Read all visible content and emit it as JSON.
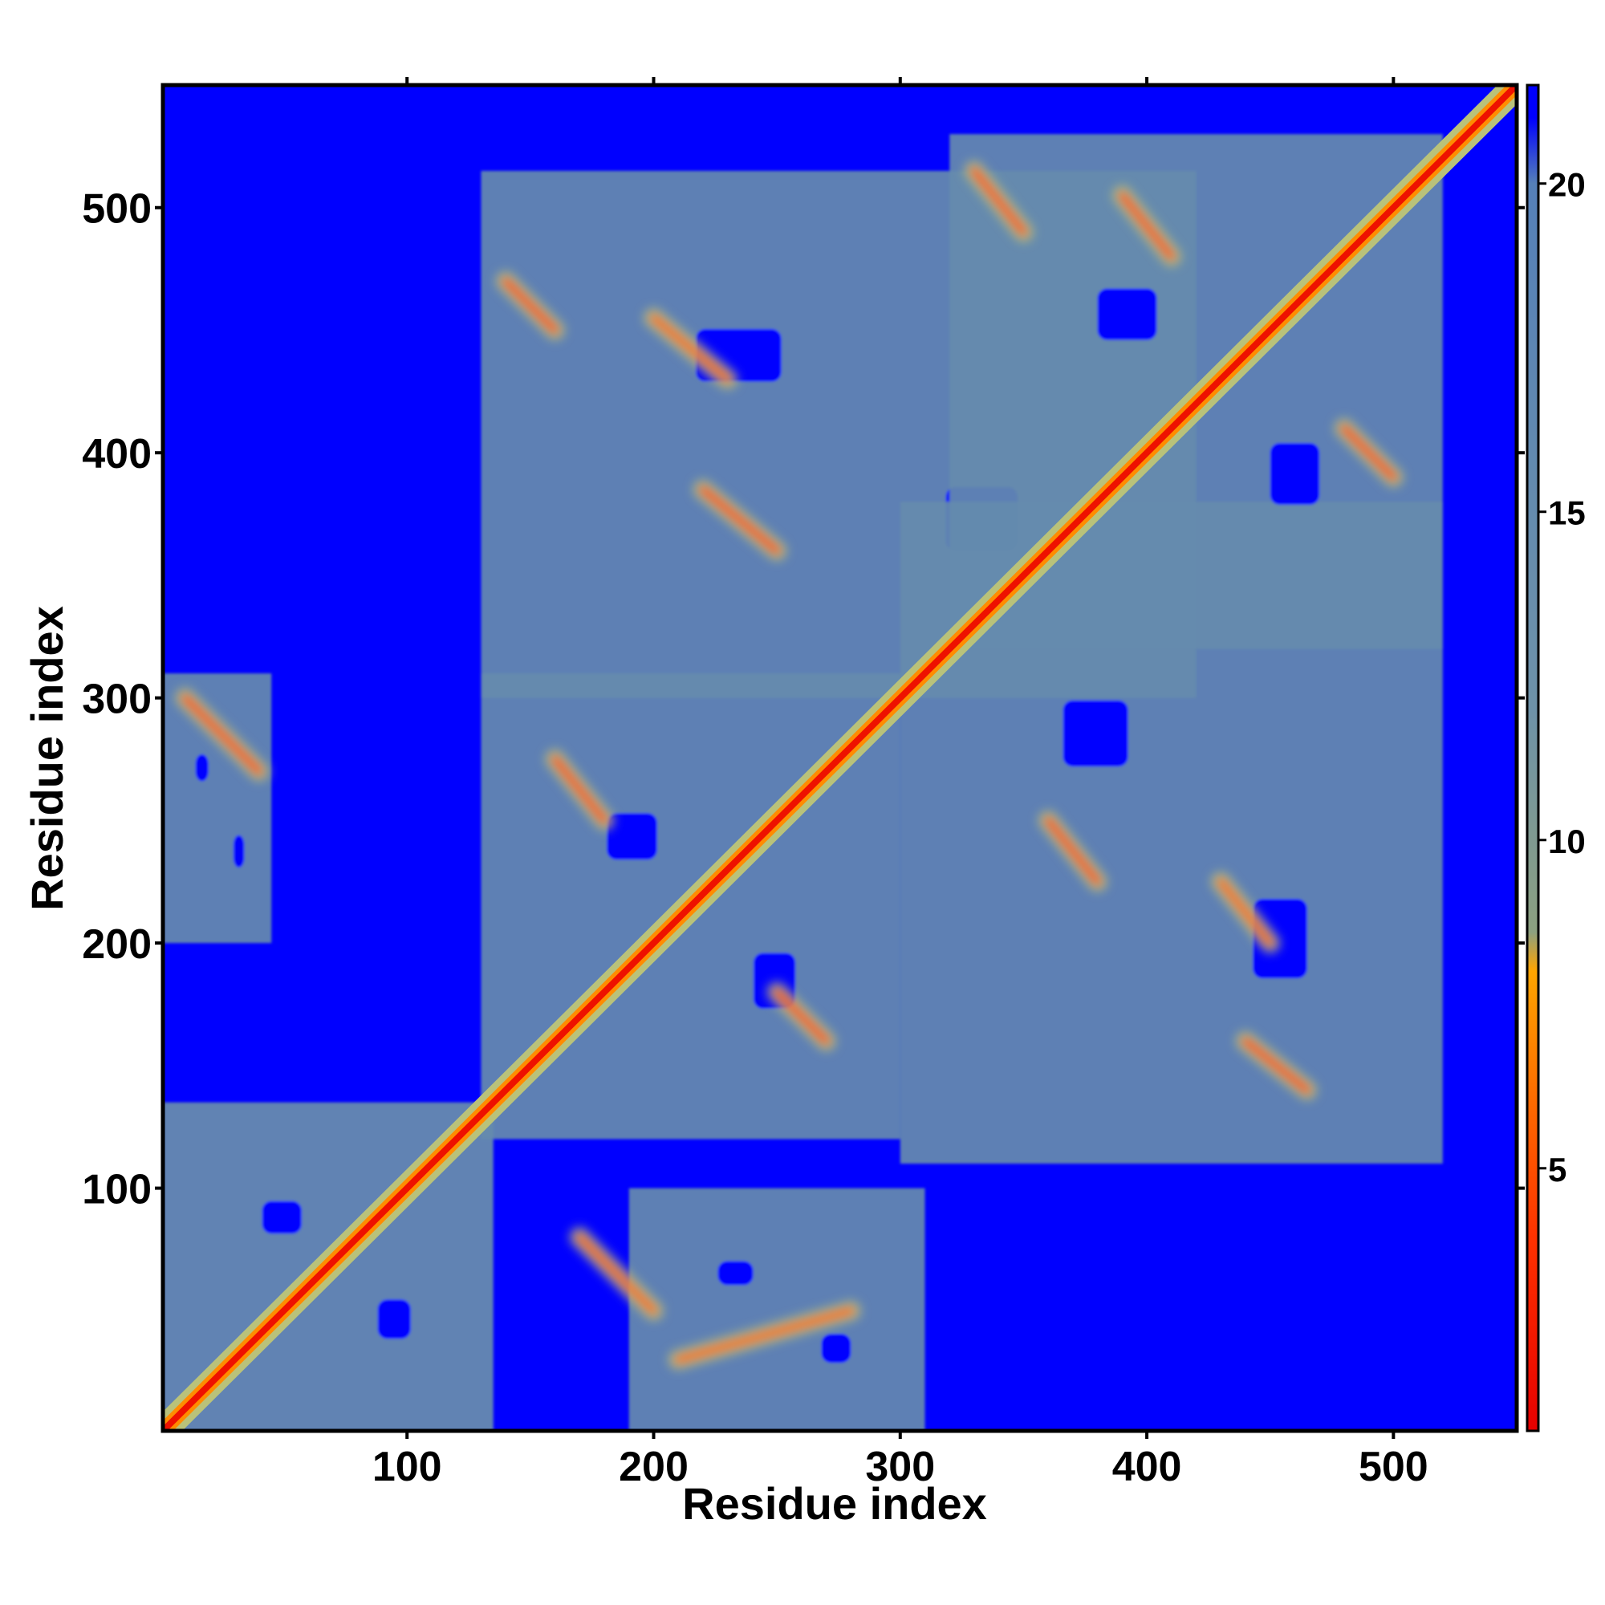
{
  "chart_data": {
    "type": "heatmap",
    "title": "",
    "xlabel": "Residue index",
    "ylabel": "Residue index",
    "xlim": [
      1,
      550
    ],
    "ylim": [
      1,
      550
    ],
    "x_ticks": [
      100,
      200,
      300,
      400,
      500
    ],
    "y_ticks": [
      100,
      200,
      300,
      400,
      500
    ],
    "x_tick_labels": [
      "100",
      "200",
      "300",
      "400",
      "500"
    ],
    "y_tick_labels": [
      "100",
      "200",
      "300",
      "400",
      "500"
    ],
    "grid": false,
    "colorbar": {
      "position": "right",
      "ticks": [
        5,
        10,
        15,
        20
      ],
      "tick_labels": [
        "5",
        "10",
        "15",
        "20"
      ],
      "range": [
        1,
        21.5
      ],
      "stops": [
        {
          "value": 1.0,
          "color": "#e60000"
        },
        {
          "value": 4.0,
          "color": "#ff3300"
        },
        {
          "value": 6.0,
          "color": "#ff6a00"
        },
        {
          "value": 8.0,
          "color": "#ffa500"
        },
        {
          "value": 8.6,
          "color": "#8ca080"
        },
        {
          "value": 12.0,
          "color": "#6e92a8"
        },
        {
          "value": 20.0,
          "color": "#5580b8"
        },
        {
          "value": 21.0,
          "color": "#0000ff"
        }
      ]
    },
    "colors": {
      "background": "#0000ff",
      "far_contact": "#5f88b4",
      "near_contact": "#b9c27a",
      "close_contact": "#ff8c00",
      "diagonal": "#ff0000"
    },
    "series": [
      {
        "kind": "diagonal_band",
        "x": [
          1,
          550
        ],
        "y": [
          1,
          550
        ],
        "distance": 2
      },
      {
        "kind": "contact_region",
        "x": [
          1,
          135
        ],
        "y": [
          1,
          135
        ],
        "distance": 14
      },
      {
        "kind": "contact_region",
        "x": [
          1,
          45
        ],
        "y": [
          200,
          310
        ],
        "distance": 15
      },
      {
        "kind": "contact_region",
        "x": [
          130,
          300
        ],
        "y": [
          120,
          310
        ],
        "distance": 15
      },
      {
        "kind": "contact_region",
        "x": [
          190,
          310
        ],
        "y": [
          1,
          100
        ],
        "distance": 15
      },
      {
        "kind": "contact_region",
        "x": [
          130,
          420
        ],
        "y": [
          300,
          515
        ],
        "distance": 15
      },
      {
        "kind": "contact_region",
        "x": [
          300,
          520
        ],
        "y": [
          110,
          380
        ],
        "distance": 15
      },
      {
        "kind": "contact_region",
        "x": [
          320,
          520
        ],
        "y": [
          320,
          530
        ],
        "distance": 15
      },
      {
        "kind": "strand_pairing",
        "x": [
          140,
          160
        ],
        "y": [
          470,
          450
        ],
        "distance": 5
      },
      {
        "kind": "strand_pairing",
        "x": [
          200,
          230
        ],
        "y": [
          455,
          430
        ],
        "distance": 6
      },
      {
        "kind": "strand_pairing",
        "x": [
          220,
          250
        ],
        "y": [
          385,
          360
        ],
        "distance": 5
      },
      {
        "kind": "strand_pairing",
        "x": [
          330,
          350
        ],
        "y": [
          515,
          490
        ],
        "distance": 5
      },
      {
        "kind": "strand_pairing",
        "x": [
          390,
          410
        ],
        "y": [
          505,
          480
        ],
        "distance": 5
      },
      {
        "kind": "strand_pairing",
        "x": [
          480,
          500
        ],
        "y": [
          410,
          390
        ],
        "distance": 5
      },
      {
        "kind": "strand_pairing",
        "x": [
          360,
          380
        ],
        "y": [
          250,
          225
        ],
        "distance": 5
      },
      {
        "kind": "strand_pairing",
        "x": [
          430,
          450
        ],
        "y": [
          225,
          200
        ],
        "distance": 6
      },
      {
        "kind": "strand_pairing",
        "x": [
          440,
          465
        ],
        "y": [
          160,
          140
        ],
        "distance": 5
      },
      {
        "kind": "strand_pairing",
        "x": [
          160,
          180
        ],
        "y": [
          275,
          250
        ],
        "distance": 5
      },
      {
        "kind": "strand_pairing",
        "x": [
          250,
          270
        ],
        "y": [
          180,
          160
        ],
        "distance": 5
      },
      {
        "kind": "strand_pairing",
        "x": [
          170,
          200
        ],
        "y": [
          80,
          50
        ],
        "distance": 6
      },
      {
        "kind": "strand_pairing",
        "x": [
          10,
          40
        ],
        "y": [
          300,
          270
        ],
        "distance": 5
      },
      {
        "kind": "strand_pairing",
        "x": [
          210,
          280
        ],
        "y": [
          30,
          50
        ],
        "distance": 6
      }
    ]
  }
}
